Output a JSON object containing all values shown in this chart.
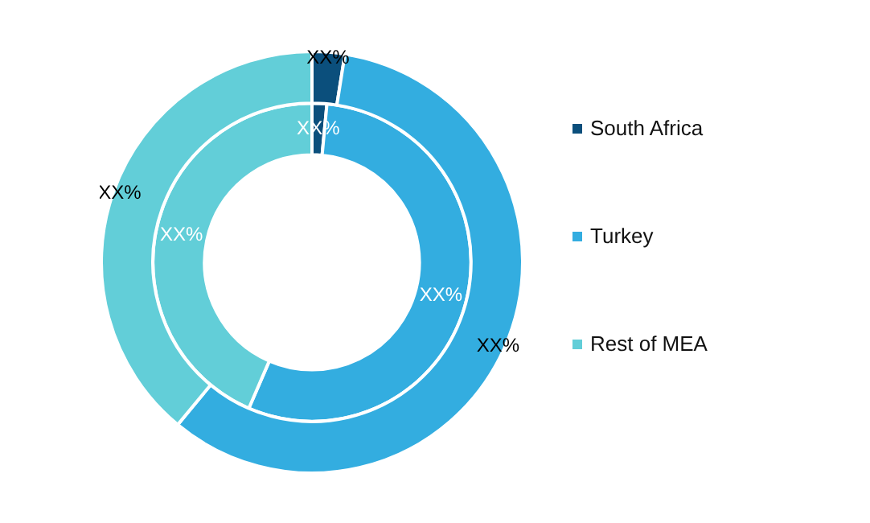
{
  "chart_data": {
    "type": "donut",
    "categories": [
      "South Africa",
      "Turkey",
      "Rest of MEA"
    ],
    "colors": [
      "#0b4f7c",
      "#33ade0",
      "#62ced8"
    ],
    "series": [
      {
        "values": [
          2.5,
          58.5,
          39
        ],
        "value_labels": [
          "XX%",
          "XX%",
          "XX%"
        ]
      },
      {
        "values": [
          1.5,
          55,
          43.5
        ],
        "value_labels": [
          "XX%",
          "XX%",
          "XX%"
        ]
      }
    ],
    "legend": "right"
  }
}
